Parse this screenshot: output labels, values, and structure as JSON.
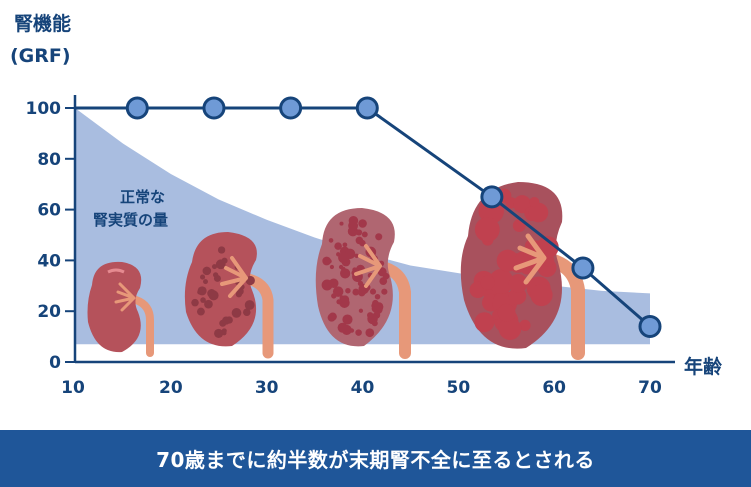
{
  "chart_data": {
    "type": "line",
    "ylabel": [
      "腎機能",
      "(GRF)"
    ],
    "xlabel": "年齢",
    "xlim": [
      10,
      70
    ],
    "ylim": [
      0,
      100
    ],
    "xticks": [
      10,
      20,
      30,
      40,
      50,
      60,
      70
    ],
    "yticks": [
      0,
      20,
      40,
      60,
      80,
      100
    ],
    "area_series": {
      "name": "正常な腎実質の量",
      "label_lines": [
        "正常な",
        "腎実質の量"
      ],
      "x": [
        10,
        15,
        20,
        25,
        30,
        35,
        40,
        45,
        50,
        55,
        60,
        65,
        70
      ],
      "values": [
        100,
        86,
        74,
        64,
        56,
        49,
        43,
        38,
        35,
        32,
        30,
        28,
        27
      ]
    },
    "line_series": {
      "x": [
        10,
        16.5,
        24.5,
        32.5,
        40.5,
        53.5,
        63,
        70
      ],
      "values": [
        100,
        100,
        100,
        100,
        100,
        65,
        37,
        14
      ],
      "markers": [
        false,
        true,
        true,
        true,
        true,
        true,
        true,
        true
      ]
    },
    "colors": {
      "axis": "#16447a",
      "line": "#16447a",
      "marker_fill": "#6f9ad6",
      "area": "#a9bde0",
      "kidney": "#b5525b",
      "ureter": "#e79879",
      "banner": "#1f5699"
    },
    "illustrations": [
      "kidney-age-20",
      "kidney-age-30",
      "kidney-age-40",
      "kidney-age-60"
    ]
  },
  "banner": {
    "text": "70歳までに約半数が末期腎不全に至るとされる"
  }
}
